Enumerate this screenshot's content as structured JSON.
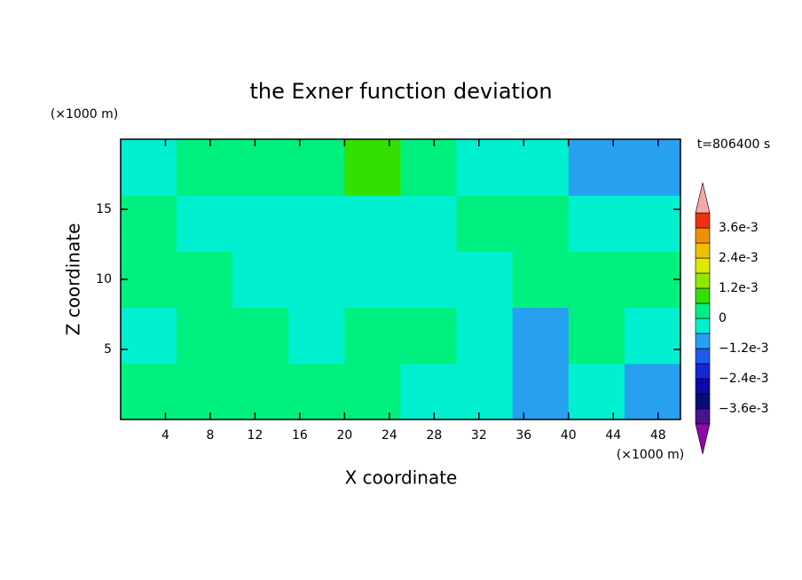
{
  "chart_data": {
    "type": "contour",
    "title": "the Exner function deviation",
    "x_label": "X coordinate",
    "y_label": "Z coordinate",
    "x_unit": "(×1000 m)",
    "y_unit": "(×1000 m)",
    "annotation": "t=806400 s",
    "xlim": [
      0,
      50
    ],
    "ylim": [
      0,
      20
    ],
    "xticks": [
      4,
      8,
      12,
      16,
      20,
      24,
      28,
      32,
      36,
      40,
      44,
      48
    ],
    "yticks": [
      5,
      10,
      15
    ],
    "x": [
      2.5,
      7.5,
      12.5,
      17.5,
      22.5,
      27.5,
      32.5,
      37.5,
      42.5,
      47.5
    ],
    "y": [
      2,
      6,
      10,
      14,
      18
    ],
    "z": [
      [
        0.0003,
        0.0003,
        0.0003,
        0.0003,
        0.0003,
        -0.0003,
        -0.0003,
        -0.0009,
        -0.0003,
        -0.0009
      ],
      [
        -0.0003,
        0.0003,
        0.0003,
        -0.0003,
        0.0003,
        0.0003,
        -0.0003,
        -0.0009,
        0.0003,
        -0.0003
      ],
      [
        0.0003,
        0.0003,
        -0.0003,
        -0.0003,
        -0.0003,
        -0.0003,
        -0.0003,
        0.0003,
        0.0003,
        0.0003
      ],
      [
        0.0003,
        -0.0003,
        -0.0003,
        -0.0003,
        -0.0003,
        -0.0003,
        0.0003,
        0.0003,
        -0.0003,
        -0.0003
      ],
      [
        -0.0003,
        0.0003,
        0.0003,
        0.0003,
        0.0009,
        0.0003,
        -0.0003,
        -0.0003,
        -0.0009,
        -0.0009
      ]
    ],
    "levels": [
      -0.0042,
      -0.0036,
      -0.003,
      -0.0024,
      -0.0018,
      -0.0012,
      -0.0006,
      0,
      0.0006,
      0.0012,
      0.0018,
      0.0024,
      0.003,
      0.0036,
      0.0042
    ],
    "colors": [
      "#4a148c",
      "#0a0a78",
      "#0a0aa8",
      "#1428d8",
      "#1e5af0",
      "#28a0f0",
      "#00f0d0",
      "#00f080",
      "#33e000",
      "#90e800",
      "#e0e800",
      "#f0c000",
      "#f09000",
      "#f03010"
    ],
    "under_color": "#8a0aaa",
    "over_color": "#f4a8a8",
    "colorbar_ticks": [
      {
        "value": 0.0036,
        "label": "3.6e-3"
      },
      {
        "value": 0.0024,
        "label": "2.4e-3"
      },
      {
        "value": 0.0012,
        "label": "1.2e-3"
      },
      0,
      {
        "value": -0.0012,
        "label": "−1.2e-3"
      },
      {
        "value": -0.0024,
        "label": "−2.4e-3"
      },
      {
        "value": -0.0036,
        "label": "−3.6e-3"
      }
    ]
  }
}
